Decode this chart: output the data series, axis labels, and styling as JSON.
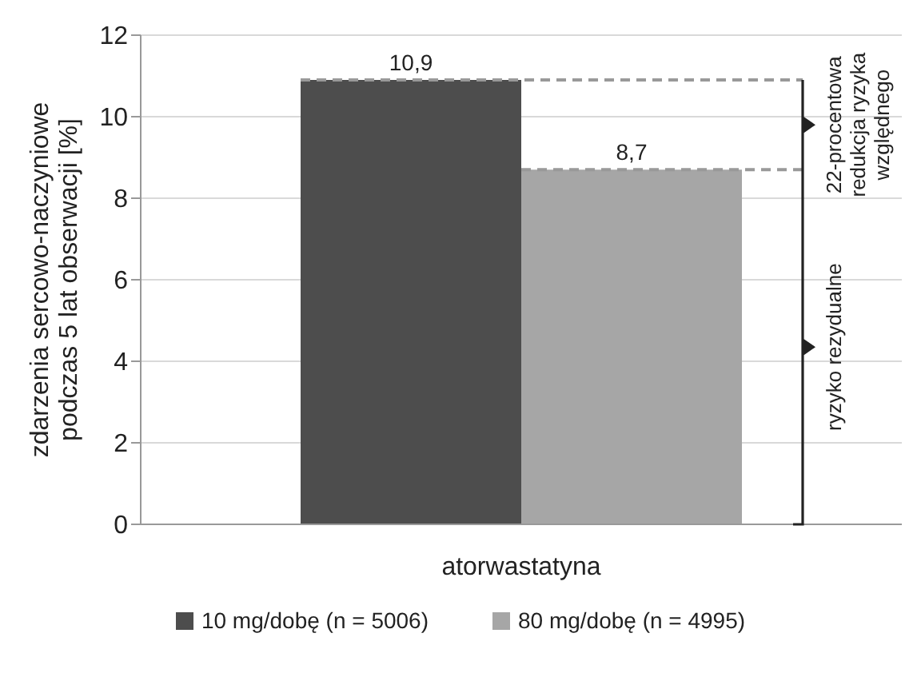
{
  "chart_data": {
    "type": "bar",
    "categories": [
      "atorwastatyna"
    ],
    "ylabel": "zdarzenia sercowo-naczyniowe podczas 5 lat obserwacji [%]",
    "series": [
      {
        "name": "10 mg/dobę (n = 5006)",
        "color": "#4d4d4d",
        "values": [
          10.9
        ],
        "value_labels": [
          "10,9"
        ]
      },
      {
        "name": "80 mg/dobę (n = 4995)",
        "color": "#a6a6a6",
        "values": [
          8.7
        ],
        "value_labels": [
          "8,7"
        ]
      }
    ],
    "ylim": [
      0,
      12
    ],
    "yticks": [
      0,
      2,
      4,
      6,
      8,
      10,
      12
    ],
    "grid": "y",
    "legend": "bottom",
    "ref_lines": [
      {
        "axis": "y",
        "value": 10.9,
        "color": "#999999",
        "line_style": "dashed"
      },
      {
        "axis": "y",
        "value": 8.7,
        "color": "#999999",
        "line_style": "dashed"
      }
    ],
    "annotations": [
      "22-procentowa redukcja ryzyka względnego",
      "ryzyko rezydualne"
    ]
  }
}
